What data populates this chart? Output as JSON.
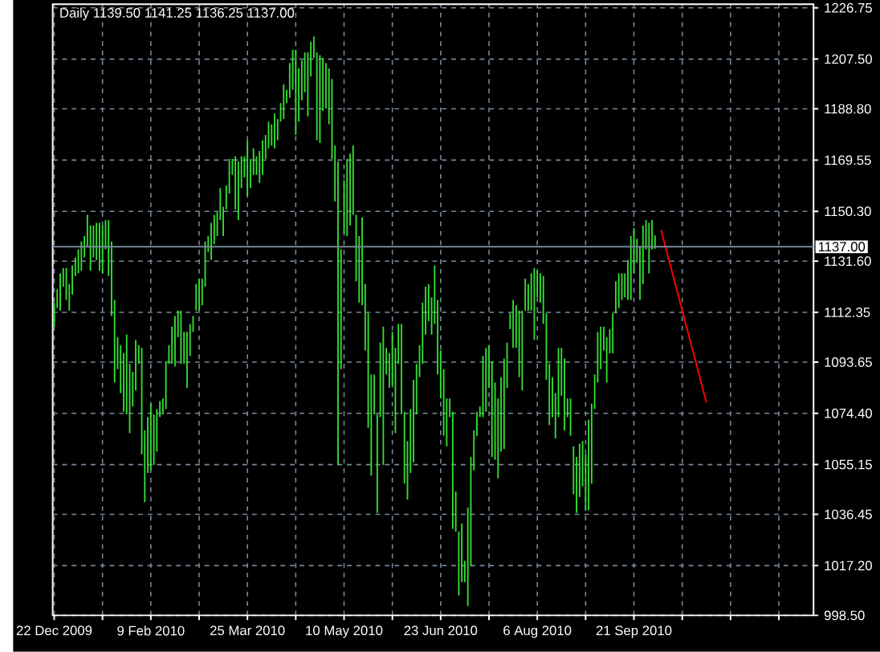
{
  "chart_data": {
    "type": "bar",
    "title": "Daily 1139.50 1141.25 1136.25 1137.00",
    "categories": [
      "22 Dec 2009",
      null,
      null,
      null,
      null,
      null,
      null,
      null,
      null,
      null,
      null,
      null,
      null,
      null,
      null,
      null,
      null,
      null,
      null,
      null,
      null,
      null,
      null,
      null,
      null,
      null,
      null,
      null,
      null,
      null,
      null,
      null,
      "9 Feb 2010",
      null,
      null,
      null,
      null,
      null,
      null,
      null,
      null,
      null,
      null,
      null,
      null,
      null,
      null,
      null,
      null,
      null,
      null,
      null,
      null,
      null,
      null,
      null,
      null,
      null,
      null,
      null,
      null,
      null,
      null,
      null,
      "25 Mar 2010",
      null,
      null,
      null,
      null,
      null,
      null,
      null,
      null,
      null,
      null,
      null,
      null,
      null,
      null,
      null,
      null,
      null,
      null,
      null,
      null,
      null,
      null,
      null,
      null,
      null,
      null,
      null,
      null,
      null,
      null,
      null,
      "10 May 2010",
      null,
      null,
      null,
      null,
      null,
      null,
      null,
      null,
      null,
      null,
      null,
      null,
      null,
      null,
      null,
      null,
      null,
      null,
      null,
      null,
      null,
      null,
      null,
      null,
      null,
      null,
      null,
      null,
      null,
      null,
      null,
      "23 Jun 2010",
      null,
      null,
      null,
      null,
      null,
      null,
      null,
      null,
      null,
      null,
      null,
      null,
      null,
      null,
      null,
      null,
      null,
      null,
      null,
      null,
      null,
      null,
      null,
      null,
      null,
      null,
      null,
      null,
      null,
      null,
      null,
      "6 Aug 2010",
      null,
      null,
      null,
      null,
      null,
      null,
      null,
      null,
      null,
      null,
      null,
      null,
      null,
      null,
      null,
      null,
      null,
      null,
      null,
      null,
      null,
      null,
      null,
      null,
      null,
      null,
      null,
      null,
      null,
      null,
      null,
      "21 Sep 2010",
      null,
      null,
      null,
      null,
      null,
      null,
      null,
      null,
      null,
      null,
      null,
      null,
      null,
      null,
      null,
      null,
      null,
      null,
      null,
      null,
      null,
      null,
      null,
      null,
      null,
      null,
      null,
      null,
      null,
      null,
      null,
      null,
      null,
      null,
      null,
      null,
      null,
      null,
      null,
      null,
      null,
      null,
      null,
      null,
      null,
      null,
      null,
      null,
      null,
      null,
      null,
      null,
      null,
      null,
      null,
      null,
      null,
      null,
      null
    ],
    "series": [
      {
        "color": "#33dd33",
        "base": [
          1107,
          1114,
          1113,
          1122,
          1117,
          1113,
          1119,
          1126,
          1127,
          1128,
          1133,
          1137,
          1128,
          1133,
          1132,
          1128,
          1127,
          1136,
          1126,
          1111,
          1086,
          1091,
          1082,
          1075,
          1074,
          1067,
          1077,
          1083,
          1093,
          1059,
          1041,
          1052,
          1053,
          1055,
          1060,
          1073,
          1074,
          1076,
          1093,
          1093,
          1092,
          1103,
          1093,
          1093,
          1084,
          1096,
          1105,
          1113,
          1113,
          1115,
          1122,
          1135,
          1132,
          1138,
          1141,
          1147,
          1141,
          1151,
          1157,
          1164,
          1151,
          1147,
          1159,
          1163,
          1156,
          1159,
          1164,
          1164,
          1161,
          1164,
          1170,
          1174,
          1175,
          1174,
          1177,
          1184,
          1185,
          1191,
          1193,
          1196,
          1179,
          1184,
          1192,
          1195,
          1186,
          1201,
          1208,
          1177,
          1176,
          1188,
          1189,
          1183,
          1170,
          1154,
          1055,
          1091,
          1142,
          1141,
          1145,
          1149,
          1124,
          1116,
          1115,
          1098,
          1069,
          1051,
          1074,
          1037,
          1073,
          1055,
          1089,
          1084,
          1085,
          1067,
          1093,
          1074,
          1048,
          1042,
          1052,
          1056,
          1074,
          1088,
          1093,
          1104,
          1109,
          1104,
          1108,
          1089,
          1080,
          1066,
          1062,
          1073,
          1031,
          1030,
          1006,
          1011,
          1011,
          1002,
          1017,
          1053,
          1066,
          1073,
          1073,
          1075,
          1084,
          1058,
          1057,
          1050,
          1060,
          1061,
          1084,
          1106,
          1099,
          1099,
          1088,
          1083,
          1113,
          1113,
          1113,
          1102,
          1118,
          1116,
          1108,
          1087,
          1070,
          1073,
          1065,
          1073,
          1081,
          1068,
          1073,
          1066,
          1044,
          1037,
          1043,
          1047,
          1038,
          1038,
          1048,
          1076,
          1086,
          1091,
          1098,
          1086,
          1097,
          1097,
          1112,
          1114,
          1117,
          1118,
          1117,
          1117,
          1127,
          1131,
          1117,
          1123,
          1136,
          1127,
          1136,
          1136.25,
          null,
          null,
          null,
          null,
          null,
          null,
          null,
          null,
          null,
          null,
          null,
          null,
          null,
          null,
          null,
          null,
          null,
          null,
          null,
          null,
          null,
          null,
          null,
          null,
          null,
          null,
          null,
          null,
          null,
          null,
          null,
          null,
          null,
          null,
          null,
          null,
          null,
          null,
          null,
          null,
          null,
          null,
          null,
          null,
          null,
          null,
          null,
          null,
          null,
          null,
          null,
          null
        ],
        "values": [
          9,
          7,
          14,
          7,
          12,
          10,
          11,
          7,
          9,
          11,
          8,
          12,
          17,
          12,
          14,
          18,
          18,
          11,
          21,
          28,
          31,
          12,
          18,
          22,
          30,
          26,
          13,
          19,
          7,
          40,
          27,
          21,
          25,
          19,
          16,
          6,
          6,
          18,
          7,
          14,
          19,
          10,
          20,
          12,
          21,
          12,
          6,
          10,
          12,
          10,
          17,
          6,
          14,
          11,
          9,
          12,
          11,
          9,
          13,
          6,
          20,
          22,
          12,
          8,
          21,
          11,
          10,
          7,
          12,
          13,
          9,
          10,
          8,
          13,
          8,
          7,
          13,
          5,
          13,
          15,
          32,
          20,
          15,
          15,
          24,
          13,
          8,
          33,
          33,
          20,
          17,
          21,
          30,
          21,
          114,
          45,
          20,
          29,
          27,
          26,
          25,
          25,
          33,
          25,
          43,
          38,
          15,
          37,
          28,
          52,
          10,
          13,
          20,
          32,
          15,
          34,
          27,
          22,
          24,
          31,
          19,
          12,
          23,
          18,
          14,
          14,
          22,
          28,
          18,
          25,
          18,
          7,
          44,
          15,
          24,
          22,
          8,
          37,
          41,
          15,
          9,
          4,
          23,
          24,
          16,
          36,
          29,
          30,
          28,
          34,
          17,
          6,
          18,
          16,
          25,
          30,
          12,
          10,
          14,
          27,
          10,
          11,
          18,
          25,
          23,
          15,
          17,
          26,
          18,
          27,
          7,
          14,
          18,
          21,
          20,
          17,
          21,
          34,
          30,
          13,
          19,
          16,
          9,
          17,
          9,
          15,
          12,
          13,
          10,
          9,
          15,
          24,
          17,
          9,
          20,
          22,
          11,
          19,
          11,
          5,
          null,
          null,
          null,
          null,
          null,
          null,
          null,
          null,
          null,
          null,
          null,
          null,
          null,
          null,
          null,
          null,
          null,
          null,
          null,
          null,
          null,
          null,
          null,
          null,
          null,
          null,
          null,
          null,
          null,
          null,
          null,
          null,
          null,
          null,
          null,
          null,
          null,
          null,
          null,
          null,
          null,
          null,
          null,
          null,
          null,
          null,
          null,
          null,
          null,
          null,
          null,
          null
        ]
      },
      {
        "type": "line",
        "color": "#ff0000",
        "values": [
          null,
          null,
          null,
          null,
          null,
          null,
          null,
          null,
          null,
          null,
          null,
          null,
          null,
          null,
          null,
          null,
          null,
          null,
          null,
          null,
          null,
          null,
          null,
          null,
          null,
          null,
          null,
          null,
          null,
          null,
          null,
          null,
          null,
          null,
          null,
          null,
          null,
          null,
          null,
          null,
          null,
          null,
          null,
          null,
          null,
          null,
          null,
          null,
          null,
          null,
          null,
          null,
          null,
          null,
          null,
          null,
          null,
          null,
          null,
          null,
          null,
          null,
          null,
          null,
          null,
          null,
          null,
          null,
          null,
          null,
          null,
          null,
          null,
          null,
          null,
          null,
          null,
          null,
          null,
          null,
          null,
          null,
          null,
          null,
          null,
          null,
          null,
          null,
          null,
          null,
          null,
          null,
          null,
          null,
          null,
          null,
          null,
          null,
          null,
          null,
          null,
          null,
          null,
          null,
          null,
          null,
          null,
          null,
          null,
          null,
          null,
          null,
          null,
          null,
          null,
          null,
          null,
          null,
          null,
          null,
          null,
          null,
          null,
          null,
          null,
          null,
          null,
          null,
          null,
          null,
          null,
          null,
          null,
          null,
          null,
          null,
          null,
          null,
          null,
          null,
          null,
          null,
          null,
          null,
          null,
          null,
          null,
          null,
          null,
          null,
          null,
          null,
          null,
          null,
          null,
          null,
          null,
          null,
          null,
          null,
          null,
          null,
          null,
          null,
          null,
          null,
          null,
          null,
          null,
          null,
          null,
          null,
          null,
          null,
          null,
          null,
          null,
          null,
          null,
          null,
          null,
          null,
          null,
          null,
          null,
          null,
          null,
          null,
          null,
          null,
          null,
          null,
          null,
          null,
          null,
          null,
          null,
          null,
          null,
          null,
          null,
          1143.3,
          1139.0,
          1134.7,
          1130.3,
          1126.0,
          1121.7,
          1117.4,
          1113.1,
          1108.7,
          1104.4,
          1100.1,
          1095.8,
          1091.5,
          1087.1,
          1082.8,
          1078.5,
          null,
          null,
          null,
          null,
          null,
          null,
          null,
          null,
          null,
          null,
          null,
          null,
          null,
          null,
          null,
          null,
          null,
          null,
          null,
          null,
          null,
          null,
          null,
          null,
          null,
          null,
          null,
          null,
          null,
          null,
          null,
          null,
          null,
          null,
          null
        ]
      }
    ],
    "ref_lines": [
      {
        "axis": "y",
        "value": 1137.0,
        "label": "1137.00",
        "color": "#778899"
      }
    ],
    "ylim": [
      998.5,
      1228.1
    ],
    "yticks": [
      {
        "value": 998.5,
        "label": "998.50"
      },
      {
        "value": 1017.2,
        "label": "1017.20"
      },
      {
        "value": 1036.45,
        "label": "1036.45"
      },
      {
        "value": 1055.15,
        "label": "1055.15"
      },
      {
        "value": 1074.4,
        "label": "1074.40"
      },
      {
        "value": 1093.65,
        "label": "1093.65"
      },
      {
        "value": 1112.35,
        "label": "1112.35"
      },
      {
        "value": 1131.6,
        "label": "1131.60"
      },
      {
        "value": 1150.3,
        "label": "1150.30"
      },
      {
        "value": 1169.55,
        "label": "1169.55"
      },
      {
        "value": 1188.8,
        "label": "1188.80"
      },
      {
        "value": 1207.5,
        "label": "1207.50"
      },
      {
        "value": 1226.75,
        "label": "1226.75"
      }
    ],
    "grid": true
  }
}
